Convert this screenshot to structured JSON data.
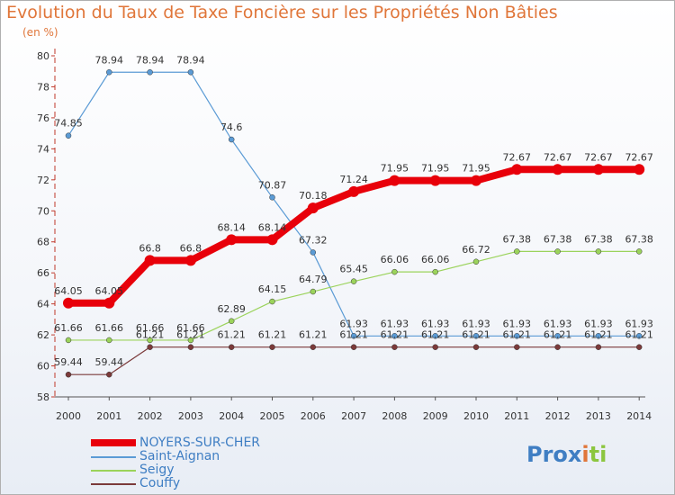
{
  "header": {
    "title": "Evolution du Taux de Taxe Foncière sur les Propriétés Non Bâties",
    "unit": "(en %)"
  },
  "logo": {
    "text": "Prox",
    "x_letter": "i",
    "tail": "ti",
    "colors": [
      "#e0763a",
      "#3f7ec3",
      "#8cc63f"
    ]
  },
  "chart_data": {
    "type": "line",
    "x": [
      "2000",
      "2001",
      "2002",
      "2003",
      "2004",
      "2005",
      "2006",
      "2007",
      "2008",
      "2009",
      "2010",
      "2011",
      "2012",
      "2013",
      "2014"
    ],
    "ylim": [
      58,
      80
    ],
    "yticks": [
      58,
      60,
      62,
      64,
      66,
      68,
      70,
      72,
      74,
      76,
      78,
      80
    ],
    "grid": false,
    "legend_position": "bottom-left",
    "series": [
      {
        "name": "NOYERS-SUR-CHER",
        "color": "#e8000a",
        "width": 8,
        "values": [
          64.05,
          64.05,
          66.8,
          66.8,
          68.14,
          68.14,
          70.18,
          71.24,
          71.95,
          71.95,
          71.95,
          72.67,
          72.67,
          72.67,
          72.67
        ],
        "labels": [
          "64.05",
          "64.05",
          "66.8",
          "66.8",
          "68.14",
          "68.14",
          "70.18",
          "71.24",
          "71.95",
          "71.95",
          "71.95",
          "72.67",
          "72.67",
          "72.67",
          "72.67"
        ]
      },
      {
        "name": "Saint-Aignan",
        "color": "#5b9bd5",
        "width": 1.2,
        "values": [
          74.85,
          78.94,
          78.94,
          78.94,
          74.6,
          70.87,
          67.32,
          61.93,
          61.93,
          61.93,
          61.93,
          61.93,
          61.93,
          61.93,
          61.93
        ],
        "labels": [
          "74.85",
          "78.94",
          "78.94",
          "78.94",
          "74.6",
          "70.87",
          "67.32",
          "61.93",
          "61.93",
          "61.93",
          "61.93",
          "61.93",
          "61.93",
          "61.93",
          "61.93"
        ]
      },
      {
        "name": "Seigy",
        "color": "#9bd35b",
        "width": 1.2,
        "values": [
          61.66,
          61.66,
          61.66,
          61.66,
          62.89,
          64.15,
          64.79,
          65.45,
          66.06,
          66.06,
          66.72,
          67.38,
          67.38,
          67.38,
          67.38
        ],
        "labels": [
          "61.66",
          "61.66",
          "61.66",
          "61.66",
          "62.89",
          "64.15",
          "64.79",
          "65.45",
          "66.06",
          "66.06",
          "66.72",
          "67.38",
          "67.38",
          "67.38",
          "67.38"
        ]
      },
      {
        "name": "Couffy",
        "color": "#7b3a3a",
        "width": 1.2,
        "values": [
          59.44,
          59.44,
          61.21,
          61.21,
          61.21,
          61.21,
          61.21,
          61.21,
          61.21,
          61.21,
          61.21,
          61.21,
          61.21,
          61.21,
          61.21
        ],
        "labels": [
          "59.44",
          "59.44",
          "61.21",
          "61.21",
          "61.21",
          "61.21",
          "61.21",
          "61.21",
          "61.21",
          "61.21",
          "61.21",
          "61.21",
          "61.21",
          "61.21",
          "61.21"
        ]
      }
    ]
  }
}
